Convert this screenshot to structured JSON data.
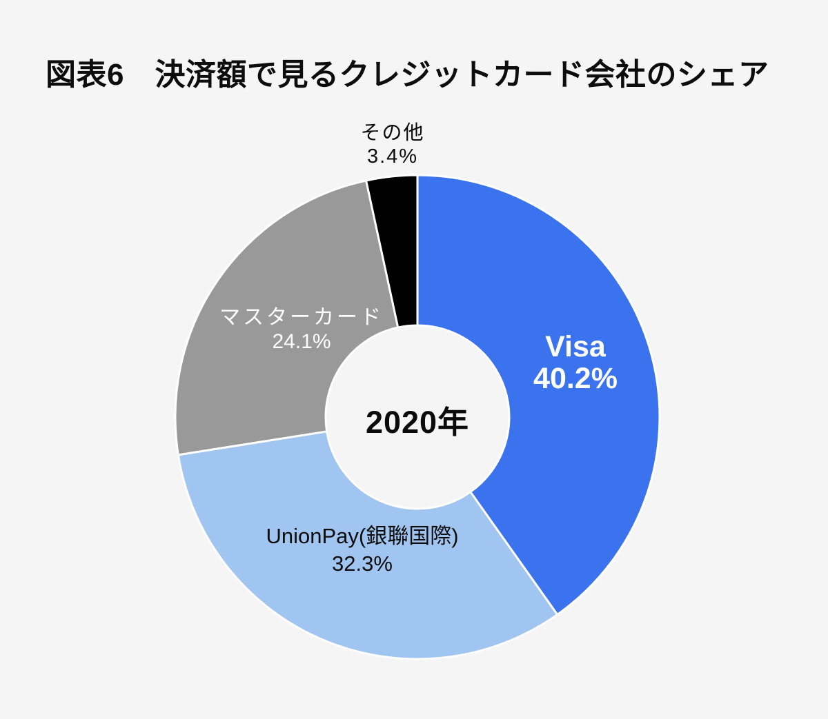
{
  "chart_data": {
    "type": "pie",
    "subtype": "donut",
    "title": "図表6　決済額で見るクレジットカード会社のシェア",
    "center_text": "2020年",
    "direction": "clockwise",
    "start_angle": "top",
    "background_color": "#f5f5f6",
    "slice_border_color": "#ffffff",
    "segments": [
      {
        "id": "visa",
        "label": "Visa",
        "value": 40.2,
        "pct_text": "40.2%",
        "color": "#3B73EE",
        "label_color": "#ffffff"
      },
      {
        "id": "unionpay",
        "label": "UnionPay(銀聯国際)",
        "value": 32.3,
        "pct_text": "32.3%",
        "color": "#A1C5F1",
        "label_color": "#111111"
      },
      {
        "id": "mastercard",
        "label": "マスターカード",
        "value": 24.1,
        "pct_text": "24.1%",
        "color": "#999999",
        "label_color": "#ffffff"
      },
      {
        "id": "other",
        "label": "その他",
        "value": 3.4,
        "pct_text": "3.4%",
        "color": "#000000",
        "label_color": "#111111"
      }
    ]
  }
}
